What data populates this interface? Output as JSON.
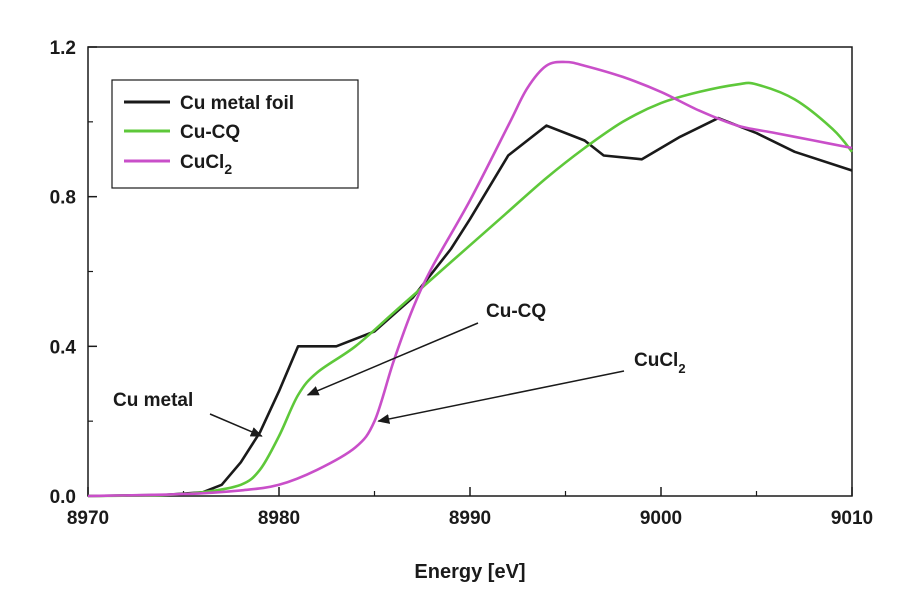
{
  "chart_data": {
    "type": "line",
    "xlabel": "Energy [eV]",
    "ylabel": "",
    "xlim": [
      8970,
      9010
    ],
    "ylim": [
      0,
      1.2
    ],
    "x_ticks": [
      8970,
      8980,
      8990,
      9000,
      9010
    ],
    "y_ticks": [
      0.0,
      0.4,
      0.8,
      1.2
    ],
    "x_tick_labels": [
      "8970",
      "8980",
      "8990",
      "9000",
      "9010"
    ],
    "y_tick_labels": [
      "0.0",
      "0.4",
      "0.8",
      "1.2"
    ],
    "grid": false,
    "legend_position": "top-left",
    "series": [
      {
        "name": "Cu metal foil",
        "label_main": "Cu metal foil",
        "label_sub": "",
        "color": "#1a1a1a",
        "x": [
          8970,
          8974,
          8976,
          8977,
          8978,
          8979,
          8980,
          8981,
          8983,
          8985,
          8987,
          8989,
          8990,
          8992,
          8994,
          8996,
          8997,
          8999,
          9001,
          9003,
          9005,
          9007,
          9010
        ],
        "y": [
          0.0,
          0.003,
          0.01,
          0.03,
          0.09,
          0.17,
          0.28,
          0.4,
          0.4,
          0.44,
          0.53,
          0.66,
          0.74,
          0.91,
          0.99,
          0.95,
          0.91,
          0.9,
          0.96,
          1.01,
          0.97,
          0.92,
          0.87
        ]
      },
      {
        "name": "Cu-CQ",
        "label_main": "Cu-CQ",
        "label_sub": "",
        "color": "#5ec83a",
        "x": [
          8970,
          8974,
          8976,
          8978,
          8979,
          8980,
          8981,
          8982,
          8984,
          8986,
          8988,
          8990,
          8992,
          8994,
          8996,
          8998,
          9000,
          9002,
          9004,
          9005,
          9007,
          9009,
          9010
        ],
        "y": [
          0.0,
          0.003,
          0.01,
          0.03,
          0.07,
          0.16,
          0.27,
          0.33,
          0.4,
          0.49,
          0.58,
          0.67,
          0.76,
          0.85,
          0.93,
          1.0,
          1.05,
          1.08,
          1.1,
          1.1,
          1.06,
          0.98,
          0.92
        ]
      },
      {
        "name": "CuCl2",
        "label_main": "CuCl",
        "label_sub": "2",
        "color": "#c94fc9",
        "x": [
          8970,
          8975,
          8978,
          8980,
          8982,
          8984,
          8985,
          8986,
          8987,
          8988,
          8990,
          8992,
          8993,
          8994,
          8995,
          8996,
          8998,
          9000,
          9002,
          9004,
          9006,
          9008,
          9010
        ],
        "y": [
          0.0,
          0.005,
          0.015,
          0.03,
          0.07,
          0.13,
          0.2,
          0.36,
          0.5,
          0.61,
          0.79,
          0.99,
          1.09,
          1.15,
          1.16,
          1.15,
          1.12,
          1.08,
          1.03,
          0.99,
          0.97,
          0.95,
          0.93
        ]
      }
    ],
    "annotations": [
      {
        "text": "Cu metal",
        "sub": "",
        "arrow_to": [
          8979.1,
          0.16
        ]
      },
      {
        "text": "Cu-CQ",
        "sub": "",
        "arrow_to": [
          8981.5,
          0.27
        ]
      },
      {
        "text": "CuCl",
        "sub": "2",
        "arrow_to": [
          8985.2,
          0.2
        ]
      }
    ]
  }
}
